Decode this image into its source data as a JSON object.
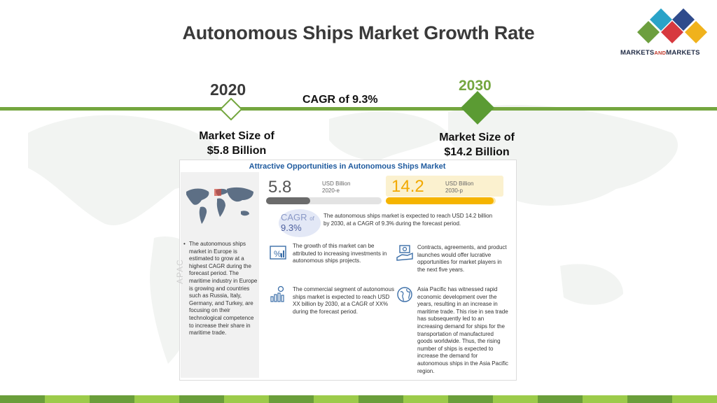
{
  "header": {
    "title": "Autonomous Ships Market Growth Rate"
  },
  "brand": {
    "logo_text_1": "MARKETS",
    "logo_text_and": "AND",
    "logo_text_2": "MARKETS",
    "colors": [
      "#6d9f3f",
      "#2aa3c8",
      "#d7393f",
      "#f0b21c",
      "#2f4b8c"
    ]
  },
  "timeline": {
    "start_year": "2020",
    "end_year": "2030",
    "cagr": "CAGR of 9.3%",
    "start_size": [
      "Market Size of",
      "$5.8 Billion"
    ],
    "end_size": [
      "Market Size of",
      "$14.2 Billion"
    ],
    "accent_color": "#74a63f"
  },
  "infographic": {
    "title": "Attractive Opportunities in Autonomous Ships Market",
    "value_2020": "5.8",
    "unit_2020": [
      "USD Billion",
      "2020-e"
    ],
    "value_2030": "14.2",
    "unit_2030": [
      "USD Billion",
      "2030-p"
    ],
    "bar_2020_fraction": 0.38,
    "bar_2030_fraction": 0.98,
    "cagr_label": "CAGR",
    "cagr_of": "of",
    "cagr_value": "9.3%",
    "summary": "The autonomous ships market is expected to reach USD 14.2 billion by 2030, at a CAGR of 9.3% during the forecast period.",
    "europe_note": "The autonomous ships market in Europe is estimated to grow at a highest CAGR during the forecast period. The maritime industry in Europe is growing and countries such as Russia, Italy, Germany, and Turkey, are focusing on their technological competence to increase their share in maritime trade.",
    "side_label": "APAC",
    "point_growth": "The growth of this market can be attributed to increasing investments in autonomous ships projects.",
    "point_contracts": "Contracts, agreements, and product launches would offer lucrative opportunities for market players in the next five years.",
    "point_commercial": "The commercial segment of autonomous ships market is expected to reach USD XX billion by 2030, at a CAGR of XX% during the forecast period.",
    "point_apac": "Asia Pacific has witnessed rapid economic development over the years, resulting in an increase in maritime trade. This rise in sea trade has subsequently led to an increasing demand for ships for the transportation of manufactured goods worldwide. Thus, the rising number of ships is expected to increase the demand for autonomous ships in the Asia Pacific region.",
    "icons": [
      "percent-chart-icon",
      "money-hand-icon",
      "bar-growth-icon",
      "globe-icon",
      "world-map-icon"
    ]
  },
  "footer": {
    "stripe_colors": [
      "#6a9e3a",
      "#9ccb4a"
    ]
  }
}
